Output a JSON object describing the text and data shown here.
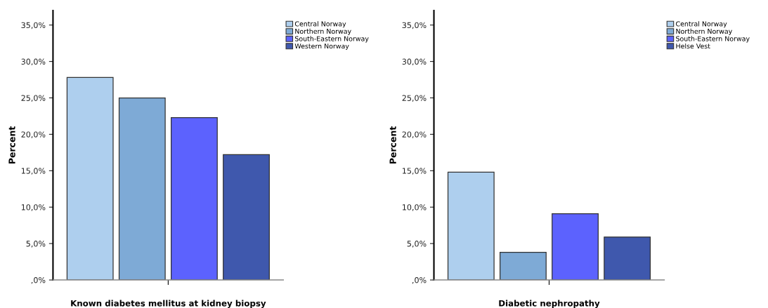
{
  "chart_data": [
    {
      "type": "bar",
      "xlabel": "Known diabetes mellitus at kidney biopsy",
      "ylabel": "Percent",
      "categories": [
        null
      ],
      "series": [
        {
          "name": "Central Norway",
          "color": "#aecfee",
          "values": [
            27.8
          ]
        },
        {
          "name": "Northern Norway",
          "color": "#7eaad6",
          "values": [
            25.0
          ]
        },
        {
          "name": "South-Eastern Norway",
          "color": "#5c62fe",
          "values": [
            22.3
          ]
        },
        {
          "name": "Western Norway",
          "color": "#3f58ad",
          "values": [
            17.2
          ]
        }
      ],
      "ylim": [
        0,
        37
      ],
      "yticks": [
        {
          "value": 0,
          "label": ",0%"
        },
        {
          "value": 5,
          "label": "5,0%"
        },
        {
          "value": 10,
          "label": "10,0%"
        },
        {
          "value": 15,
          "label": "15,0%"
        },
        {
          "value": 20,
          "label": "20,0%"
        },
        {
          "value": 25,
          "label": "25,0%"
        },
        {
          "value": 30,
          "label": "30,0%"
        },
        {
          "value": 35,
          "label": "35,0%"
        }
      ],
      "legend": "top right",
      "grid": false
    },
    {
      "type": "bar",
      "xlabel": "Diabetic nephropathy",
      "ylabel": "Percent",
      "categories": [
        null
      ],
      "series": [
        {
          "name": "Central Norway",
          "color": "#aecfee",
          "values": [
            14.8
          ]
        },
        {
          "name": "Northern Norway",
          "color": "#7eaad6",
          "values": [
            3.8
          ]
        },
        {
          "name": "South-Eastern Norway",
          "color": "#5c62fe",
          "values": [
            9.1
          ]
        },
        {
          "name": "Helse Vest",
          "color": "#3f58ad",
          "values": [
            5.9
          ]
        }
      ],
      "ylim": [
        0,
        37
      ],
      "yticks": [
        {
          "value": 0,
          "label": ",0%"
        },
        {
          "value": 5,
          "label": "5,0%"
        },
        {
          "value": 10,
          "label": "10,0%"
        },
        {
          "value": 15,
          "label": "15,0%"
        },
        {
          "value": 20,
          "label": "20,0%"
        },
        {
          "value": 25,
          "label": "25,0%"
        },
        {
          "value": 30,
          "label": "30,0%"
        },
        {
          "value": 35,
          "label": "35,0%"
        }
      ],
      "legend": "top right",
      "grid": false
    }
  ]
}
